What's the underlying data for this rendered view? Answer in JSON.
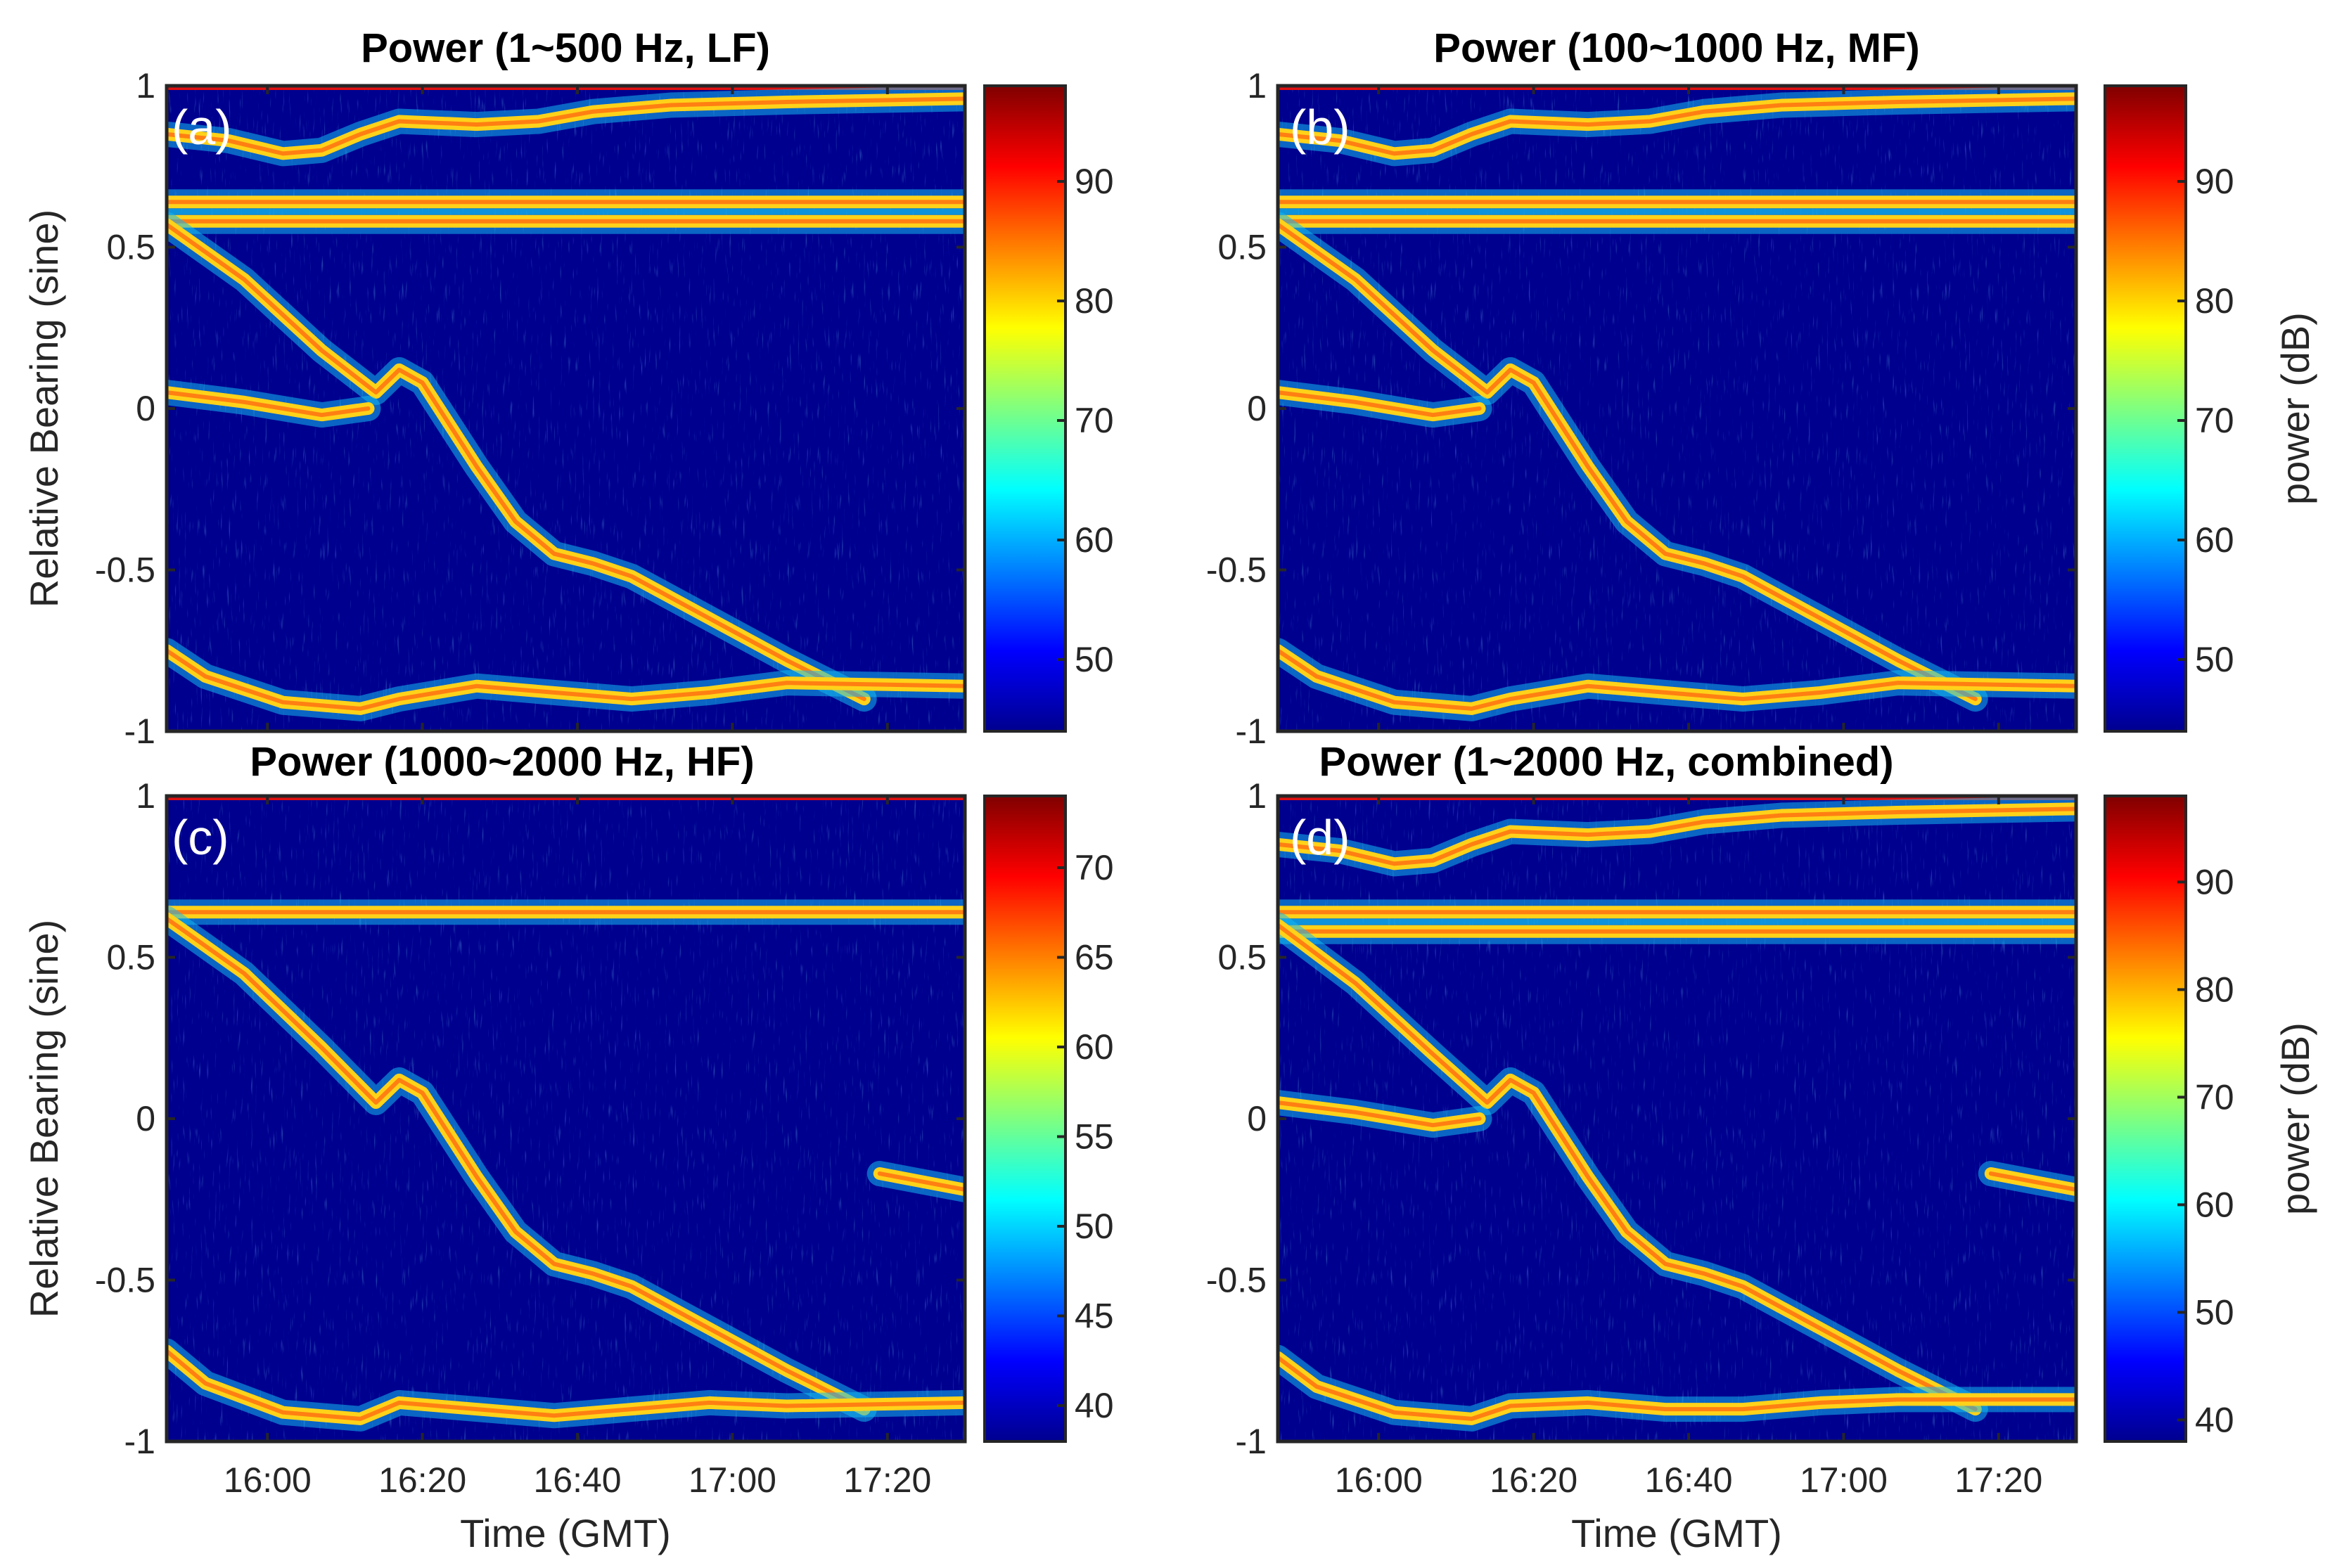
{
  "figure": {
    "background": "#ffffff"
  },
  "chart_data": [
    {
      "type": "heatmap",
      "panel_label": "(a)",
      "title": "Power (1~500 Hz, LF)",
      "xlabel": "",
      "ylabel": "Relative Bearing (sine)",
      "x_ticks": [],
      "x_range": [
        "15:47",
        "17:30"
      ],
      "ylim": [
        -1,
        1
      ],
      "y_ticks": [
        "-1",
        "-0.5",
        "0",
        "0.5",
        "1"
      ],
      "colorbar": {
        "label": "",
        "ticks": [
          "50",
          "60",
          "70",
          "80",
          "90"
        ],
        "range": [
          44,
          98
        ]
      },
      "tracks": [
        {
          "name": "near-end-fire-top",
          "band": "red",
          "time_min": [
            0,
            103
          ],
          "bearing": [
            1.0,
            1.0
          ]
        },
        {
          "name": "upper-track",
          "time_min": [
            0,
            8,
            15,
            20,
            25,
            30,
            40,
            48,
            55,
            65,
            80,
            103
          ],
          "bearing": [
            0.85,
            0.83,
            0.79,
            0.8,
            0.85,
            0.89,
            0.88,
            0.89,
            0.92,
            0.94,
            0.95,
            0.96
          ]
        },
        {
          "name": "band-0.65",
          "time_min": [
            0,
            103
          ],
          "bearing": [
            0.64,
            0.64
          ]
        },
        {
          "name": "band-0.58",
          "time_min": [
            0,
            103
          ],
          "bearing": [
            0.58,
            0.58
          ]
        },
        {
          "name": "main-target",
          "time_min": [
            0,
            10,
            20,
            27,
            30,
            33,
            40,
            45,
            50,
            55,
            60,
            70,
            80,
            90
          ],
          "bearing": [
            0.57,
            0.4,
            0.18,
            0.05,
            0.12,
            0.08,
            -0.18,
            -0.35,
            -0.45,
            -0.48,
            -0.52,
            -0.65,
            -0.78,
            -0.9
          ]
        },
        {
          "name": "near-zero-track",
          "time_min": [
            0,
            10,
            20,
            26
          ],
          "bearing": [
            0.05,
            0.02,
            -0.02,
            0.0
          ]
        },
        {
          "name": "bottom-track",
          "time_min": [
            0,
            5,
            15,
            25,
            30,
            40,
            50,
            60,
            70,
            80,
            103
          ],
          "bearing": [
            -0.75,
            -0.83,
            -0.91,
            -0.93,
            -0.9,
            -0.86,
            -0.88,
            -0.9,
            -0.88,
            -0.85,
            -0.86
          ]
        }
      ]
    },
    {
      "type": "heatmap",
      "panel_label": "(b)",
      "title": "Power (100~1000 Hz, MF)",
      "xlabel": "",
      "ylabel": "",
      "x_ticks": [],
      "x_range": [
        "15:47",
        "17:30"
      ],
      "ylim": [
        -1,
        1
      ],
      "y_ticks": [
        "-1",
        "-0.5",
        "0",
        "0.5",
        "1"
      ],
      "colorbar": {
        "label": "power (dB)",
        "ticks": [
          "50",
          "60",
          "70",
          "80",
          "90"
        ],
        "range": [
          44,
          98
        ]
      },
      "tracks": [
        {
          "name": "near-end-fire-top",
          "band": "red",
          "time_min": [
            0,
            103
          ],
          "bearing": [
            1.0,
            1.0
          ]
        },
        {
          "name": "upper-track",
          "time_min": [
            0,
            8,
            15,
            20,
            25,
            30,
            40,
            48,
            55,
            65,
            80,
            103
          ],
          "bearing": [
            0.85,
            0.83,
            0.79,
            0.8,
            0.85,
            0.89,
            0.88,
            0.89,
            0.92,
            0.94,
            0.95,
            0.96
          ]
        },
        {
          "name": "band-0.65",
          "time_min": [
            0,
            103
          ],
          "bearing": [
            0.64,
            0.64
          ]
        },
        {
          "name": "band-0.58",
          "time_min": [
            0,
            103
          ],
          "bearing": [
            0.58,
            0.58
          ]
        },
        {
          "name": "main-target",
          "time_min": [
            0,
            10,
            20,
            27,
            30,
            33,
            40,
            45,
            50,
            55,
            60,
            70,
            80,
            90
          ],
          "bearing": [
            0.57,
            0.4,
            0.18,
            0.05,
            0.12,
            0.08,
            -0.18,
            -0.35,
            -0.45,
            -0.48,
            -0.52,
            -0.65,
            -0.78,
            -0.9
          ]
        },
        {
          "name": "near-zero-track",
          "time_min": [
            0,
            10,
            20,
            26
          ],
          "bearing": [
            0.05,
            0.02,
            -0.02,
            0.0
          ]
        },
        {
          "name": "bottom-track",
          "time_min": [
            0,
            5,
            15,
            25,
            30,
            40,
            50,
            60,
            70,
            80,
            103
          ],
          "bearing": [
            -0.75,
            -0.83,
            -0.91,
            -0.93,
            -0.9,
            -0.86,
            -0.88,
            -0.9,
            -0.88,
            -0.85,
            -0.86
          ]
        }
      ]
    },
    {
      "type": "heatmap",
      "panel_label": "(c)",
      "title": "Power (1000~2000 Hz, HF)",
      "xlabel": "Time (GMT)",
      "ylabel": "Relative Bearing (sine)",
      "x_ticks": [
        "16:00",
        "16:20",
        "16:40",
        "17:00",
        "17:20"
      ],
      "x_range": [
        "15:47",
        "17:30"
      ],
      "ylim": [
        -1,
        1
      ],
      "y_ticks": [
        "-1",
        "-0.5",
        "0",
        "0.5",
        "1"
      ],
      "colorbar": {
        "label": "",
        "ticks": [
          "40",
          "45",
          "50",
          "55",
          "60",
          "65",
          "70"
        ],
        "range": [
          38,
          74
        ]
      },
      "tracks": [
        {
          "name": "near-end-fire-top",
          "band": "red",
          "time_min": [
            0,
            103
          ],
          "bearing": [
            1.0,
            1.0
          ]
        },
        {
          "name": "band-0.65",
          "time_min": [
            0,
            103
          ],
          "bearing": [
            0.64,
            0.64
          ]
        },
        {
          "name": "main-target",
          "time_min": [
            0,
            10,
            20,
            27,
            30,
            33,
            40,
            45,
            50,
            55,
            60,
            70,
            80,
            90
          ],
          "bearing": [
            0.62,
            0.45,
            0.22,
            0.05,
            0.12,
            0.08,
            -0.18,
            -0.35,
            -0.45,
            -0.48,
            -0.52,
            -0.65,
            -0.78,
            -0.9
          ]
        },
        {
          "name": "short-track",
          "time_min": [
            92,
            103
          ],
          "bearing": [
            -0.17,
            -0.22
          ]
        },
        {
          "name": "bottom-track",
          "time_min": [
            0,
            5,
            15,
            25,
            30,
            40,
            50,
            60,
            70,
            80,
            103
          ],
          "bearing": [
            -0.72,
            -0.82,
            -0.91,
            -0.93,
            -0.88,
            -0.9,
            -0.92,
            -0.9,
            -0.88,
            -0.89,
            -0.88
          ]
        }
      ]
    },
    {
      "type": "heatmap",
      "panel_label": "(d)",
      "title": "Power (1~2000 Hz, combined)",
      "xlabel": "Time (GMT)",
      "ylabel": "",
      "x_ticks": [
        "16:00",
        "16:20",
        "16:40",
        "17:00",
        "17:20"
      ],
      "x_range": [
        "15:47",
        "17:30"
      ],
      "ylim": [
        -1,
        1
      ],
      "y_ticks": [
        "-1",
        "-0.5",
        "0",
        "0.5",
        "1"
      ],
      "colorbar": {
        "label": "power (dB)",
        "ticks": [
          "40",
          "50",
          "60",
          "70",
          "80",
          "90"
        ],
        "range": [
          38,
          98
        ]
      },
      "tracks": [
        {
          "name": "near-end-fire-top",
          "band": "red",
          "time_min": [
            0,
            103
          ],
          "bearing": [
            1.0,
            1.0
          ]
        },
        {
          "name": "upper-track",
          "time_min": [
            0,
            8,
            15,
            20,
            25,
            30,
            40,
            48,
            55,
            65,
            80,
            103
          ],
          "bearing": [
            0.85,
            0.83,
            0.79,
            0.8,
            0.85,
            0.89,
            0.88,
            0.89,
            0.92,
            0.94,
            0.95,
            0.96
          ]
        },
        {
          "name": "band-0.65",
          "time_min": [
            0,
            103
          ],
          "bearing": [
            0.64,
            0.64
          ]
        },
        {
          "name": "band-0.58",
          "time_min": [
            0,
            103
          ],
          "bearing": [
            0.58,
            0.58
          ]
        },
        {
          "name": "main-target",
          "time_min": [
            0,
            10,
            20,
            27,
            30,
            33,
            40,
            45,
            50,
            55,
            60,
            70,
            80,
            90
          ],
          "bearing": [
            0.6,
            0.42,
            0.2,
            0.05,
            0.12,
            0.08,
            -0.18,
            -0.35,
            -0.45,
            -0.48,
            -0.52,
            -0.65,
            -0.78,
            -0.9
          ]
        },
        {
          "name": "near-zero-track",
          "time_min": [
            0,
            10,
            20,
            26
          ],
          "bearing": [
            0.05,
            0.02,
            -0.02,
            0.0
          ]
        },
        {
          "name": "short-track",
          "time_min": [
            92,
            103
          ],
          "bearing": [
            -0.17,
            -0.22
          ]
        },
        {
          "name": "bottom-track",
          "time_min": [
            0,
            5,
            15,
            25,
            30,
            40,
            50,
            60,
            70,
            80,
            103
          ],
          "bearing": [
            -0.74,
            -0.83,
            -0.91,
            -0.93,
            -0.89,
            -0.88,
            -0.9,
            -0.9,
            -0.88,
            -0.87,
            -0.87
          ]
        }
      ]
    }
  ]
}
